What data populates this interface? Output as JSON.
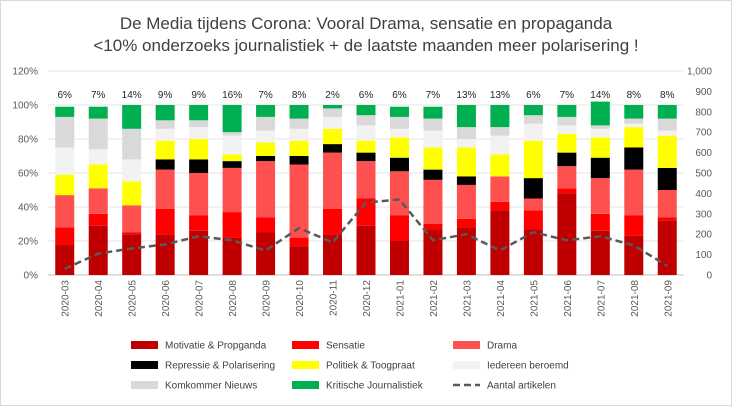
{
  "chart_data": {
    "type": "bar",
    "title": "De Media tijdens Corona: Vooral Drama, sensatie en propaganda",
    "subtitle": "<10% onderzoeks journalistiek + de laatste maanden meer polarisering !",
    "categories": [
      "2020-03",
      "2020-04",
      "2020-05",
      "2020-06",
      "2020-07",
      "2020-08",
      "2020-09",
      "2020-10",
      "2020-11",
      "2020-12",
      "2021-01",
      "2021-02",
      "2021-03",
      "2021-04",
      "2021-05",
      "2021-06",
      "2021-07",
      "2021-08",
      "2021-09"
    ],
    "y_left": {
      "ylim": [
        0,
        120
      ],
      "ticks": [
        "0%",
        "20%",
        "40%",
        "60%",
        "80%",
        "100%",
        "120%"
      ]
    },
    "y_right": {
      "ylim": [
        0,
        1000
      ],
      "ticks": [
        "0",
        "100",
        "200",
        "300",
        "400",
        "500",
        "600",
        "700",
        "800",
        "900",
        "1,000"
      ]
    },
    "critical_labels": [
      "6%",
      "7%",
      "14%",
      "9%",
      "9%",
      "16%",
      "7%",
      "8%",
      "2%",
      "6%",
      "6%",
      "7%",
      "13%",
      "13%",
      "6%",
      "7%",
      "14%",
      "8%",
      "8%"
    ],
    "series": [
      {
        "name": "Motivatie & Propganda",
        "color": "#c00000",
        "values": [
          18,
          29,
          24,
          24,
          26,
          22,
          25,
          17,
          24,
          29,
          20,
          27,
          28,
          38,
          27,
          48,
          26,
          23,
          32
        ]
      },
      {
        "name": "Sensatie",
        "color": "#ff0000",
        "values": [
          10,
          7,
          1,
          15,
          9,
          15,
          9,
          5,
          15,
          16,
          15,
          3,
          5,
          5,
          11,
          3,
          10,
          12,
          2
        ]
      },
      {
        "name": "Drama",
        "color": "#ff5050",
        "values": [
          19,
          15,
          16,
          23,
          25,
          26,
          33,
          43,
          33,
          22,
          26,
          26,
          20,
          15,
          7,
          13,
          21,
          27,
          16
        ]
      },
      {
        "name": "Repressie & Polarisering",
        "color": "#000000",
        "values": [
          0,
          0,
          0,
          6,
          8,
          4,
          3,
          5,
          5,
          5,
          8,
          6,
          5,
          0,
          12,
          8,
          12,
          13,
          13
        ]
      },
      {
        "name": "Politiek & Toogpraat",
        "color": "#ffff00",
        "values": [
          12,
          14,
          14,
          11,
          12,
          4,
          8,
          9,
          9,
          7,
          12,
          13,
          17,
          13,
          22,
          11,
          12,
          12,
          19
        ]
      },
      {
        "name": "Iedereen beroemd",
        "color": "#f2f2f2",
        "values": [
          16,
          9,
          13,
          7,
          7,
          11,
          7,
          7,
          7,
          9,
          5,
          10,
          5,
          11,
          10,
          5,
          5,
          2,
          3
        ]
      },
      {
        "name": "Komkommer Nieuws",
        "color": "#d9d9d9",
        "values": [
          18,
          18,
          18,
          5,
          4,
          2,
          8,
          6,
          5,
          6,
          7,
          7,
          7,
          5,
          5,
          5,
          2,
          3,
          7
        ]
      },
      {
        "name": "Kritische Journalistiek",
        "color": "#00b050",
        "values": [
          6,
          7,
          14,
          9,
          9,
          16,
          7,
          8,
          2,
          6,
          6,
          7,
          13,
          13,
          6,
          7,
          14,
          8,
          8
        ]
      }
    ],
    "line": {
      "name": "Aantal artikelen",
      "color": "#595959",
      "values": [
        30,
        105,
        130,
        150,
        190,
        170,
        120,
        230,
        160,
        355,
        370,
        170,
        200,
        120,
        210,
        170,
        190,
        145,
        45
      ]
    }
  }
}
